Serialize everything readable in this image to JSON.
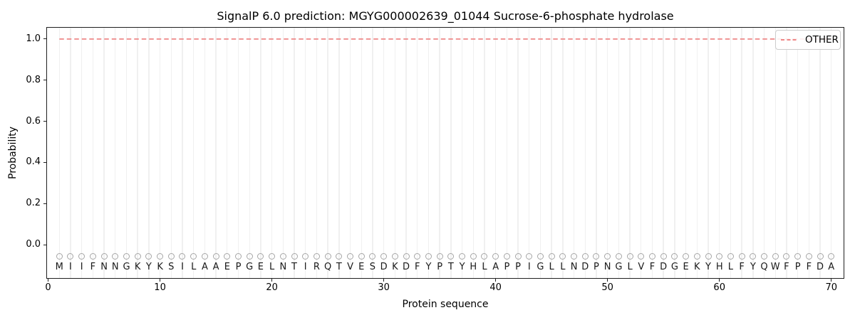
{
  "figure": {
    "title": "SignalP 6.0 prediction: MGYG000002639_01044 Sucrose-6-phosphate hydrolase"
  },
  "legend": {
    "position": "upper-right",
    "entries": [
      {
        "label": "OTHER",
        "color": "#ee8787",
        "linestyle": "dashed"
      }
    ]
  },
  "chart_data": {
    "type": "line",
    "title": "SignalP 6.0 prediction: MGYG000002639_01044 Sucrose-6-phosphate hydrolase",
    "xlabel": "Protein sequence",
    "ylabel": "Probability",
    "x": [
      1,
      2,
      3,
      4,
      5,
      6,
      7,
      8,
      9,
      10,
      11,
      12,
      13,
      14,
      15,
      16,
      17,
      18,
      19,
      20,
      21,
      22,
      23,
      24,
      25,
      26,
      27,
      28,
      29,
      30,
      31,
      32,
      33,
      34,
      35,
      36,
      37,
      38,
      39,
      40,
      41,
      42,
      43,
      44,
      45,
      46,
      47,
      48,
      49,
      50,
      51,
      52,
      53,
      54,
      55,
      56,
      57,
      58,
      59,
      60,
      61,
      62,
      63,
      64,
      65,
      66,
      67,
      68,
      69,
      70
    ],
    "series": [
      {
        "name": "OTHER",
        "color": "#ee8787",
        "linestyle": "dashed",
        "values": [
          1.0,
          1.0,
          1.0,
          1.0,
          1.0,
          1.0,
          1.0,
          1.0,
          1.0,
          1.0,
          1.0,
          1.0,
          1.0,
          1.0,
          1.0,
          1.0,
          1.0,
          1.0,
          1.0,
          1.0,
          1.0,
          1.0,
          1.0,
          1.0,
          1.0,
          1.0,
          1.0,
          1.0,
          1.0,
          1.0,
          1.0,
          1.0,
          1.0,
          1.0,
          1.0,
          1.0,
          1.0,
          1.0,
          1.0,
          1.0,
          1.0,
          1.0,
          1.0,
          1.0,
          1.0,
          1.0,
          1.0,
          1.0,
          1.0,
          1.0,
          1.0,
          1.0,
          1.0,
          1.0,
          1.0,
          1.0,
          1.0,
          1.0,
          1.0,
          1.0,
          1.0,
          1.0,
          1.0,
          1.0,
          1.0,
          1.0,
          1.0,
          1.0,
          1.0,
          1.0
        ]
      }
    ],
    "sequence": [
      "M",
      "I",
      "I",
      "F",
      "N",
      "N",
      "G",
      "K",
      "Y",
      "K",
      "S",
      "I",
      "L",
      "A",
      "A",
      "E",
      "P",
      "G",
      "E",
      "L",
      "N",
      "T",
      "I",
      "R",
      "Q",
      "T",
      "V",
      "E",
      "S",
      "D",
      "K",
      "D",
      "F",
      "Y",
      "P",
      "T",
      "Y",
      "H",
      "L",
      "A",
      "P",
      "P",
      "I",
      "G",
      "L",
      "L",
      "N",
      "D",
      "P",
      "N",
      "G",
      "L",
      "V",
      "F",
      "D",
      "G",
      "E",
      "K",
      "Y",
      "H",
      "L",
      "F",
      "Y",
      "Q",
      "W",
      "F",
      "P",
      "F",
      "D",
      "A"
    ],
    "residue_marker": "open-circle",
    "marker_color": "#a6a6a6",
    "marker_y": -0.058,
    "letter_y": -0.11,
    "xticks": [
      0,
      10,
      20,
      30,
      40,
      50,
      60,
      70
    ],
    "yticks": [
      0.0,
      0.2,
      0.4,
      0.6,
      0.8,
      1.0
    ],
    "ytick_labels": [
      "0.0",
      "0.2",
      "0.4",
      "0.6",
      "0.8",
      "1.0"
    ],
    "xlim": [
      -0.1,
      71.1
    ],
    "ylim": [
      -0.162,
      1.055
    ],
    "grid": "vertical-per-residue",
    "grid_color": "#f0f0f0",
    "legend_position": "upper-right"
  }
}
